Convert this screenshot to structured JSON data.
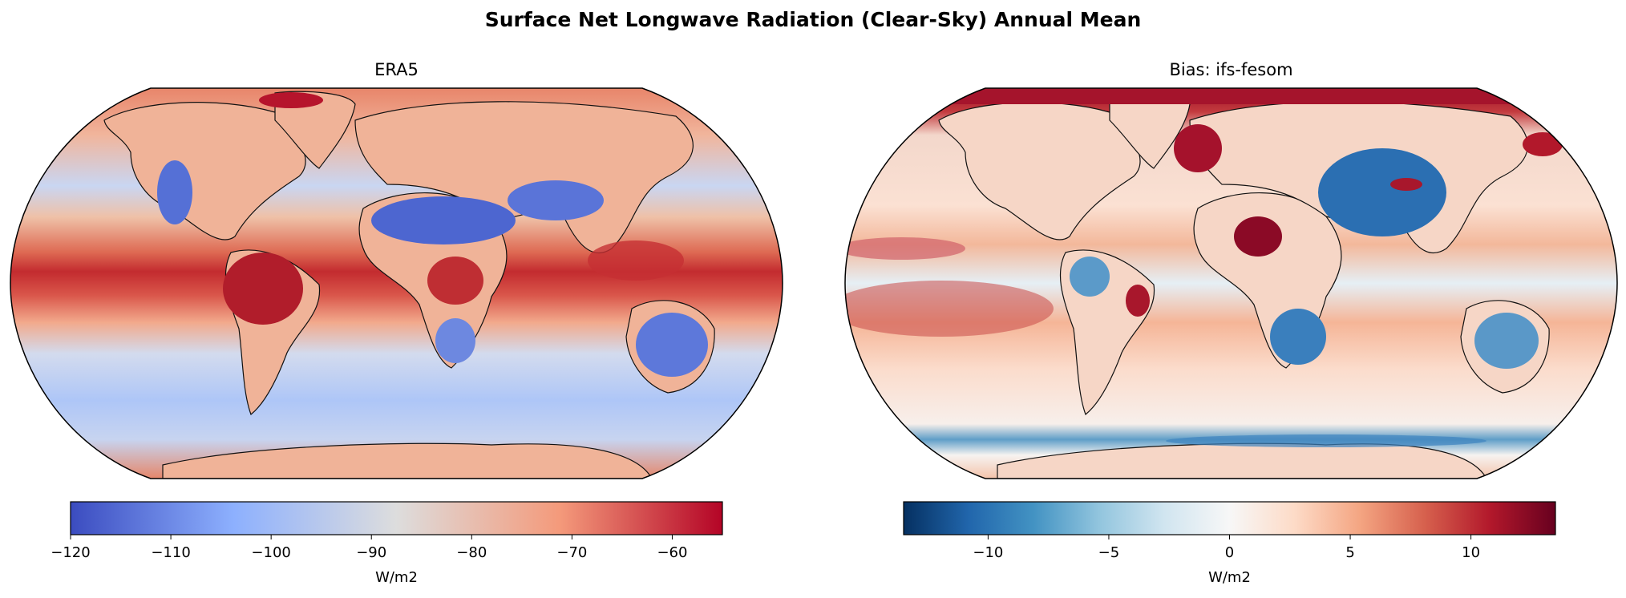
{
  "suptitle": "Surface Net Longwave Radiation (Clear-Sky) Annual Mean",
  "chart_data": [
    {
      "type": "heatmap",
      "title": "ERA5",
      "projection": "Robinson",
      "colormap": "coolwarm",
      "colorbar": {
        "label": "W/m2",
        "range": [
          -120,
          -55
        ],
        "ticks": [
          -120,
          -110,
          -100,
          -90,
          -80,
          -70,
          -60
        ],
        "tick_labels": [
          "−120",
          "−110",
          "−100",
          "−90",
          "−80",
          "−70",
          "−60"
        ],
        "colors": [
          "#3b4cc0",
          "#8db0fe",
          "#dddddd",
          "#f49a7b",
          "#b40426"
        ]
      }
    },
    {
      "type": "heatmap",
      "title": "Bias: ifs-fesom",
      "projection": "Robinson",
      "colormap": "RdBu_r",
      "colorbar": {
        "label": "W/m2",
        "range": [
          -13.5,
          13.5
        ],
        "ticks": [
          -10,
          -5,
          0,
          5,
          10
        ],
        "tick_labels": [
          "−10",
          "−5",
          "0",
          "5",
          "10"
        ],
        "colors": [
          "#053061",
          "#2166ac",
          "#4393c3",
          "#92c5de",
          "#d1e5f0",
          "#f7f7f7",
          "#fddbc7",
          "#f4a582",
          "#d6604d",
          "#b2182b",
          "#67001f"
        ]
      }
    }
  ]
}
